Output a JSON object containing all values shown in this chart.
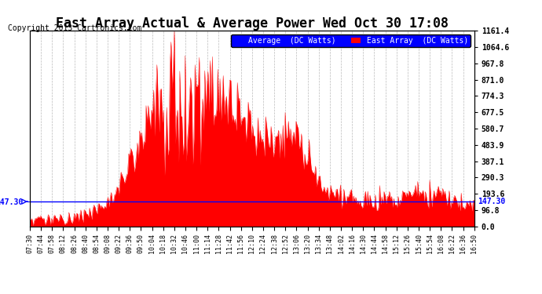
{
  "title": "East Array Actual & Average Power Wed Oct 30 17:08",
  "copyright": "Copyright 2013 Cartronics.com",
  "legend_labels": [
    "Average  (DC Watts)",
    "East Array  (DC Watts)"
  ],
  "legend_colors": [
    "#0000ff",
    "#ff0000"
  ],
  "yticks_right": [
    0.0,
    96.8,
    193.6,
    290.3,
    387.1,
    483.9,
    580.7,
    677.5,
    774.3,
    871.0,
    967.8,
    1064.6,
    1161.4
  ],
  "hline_value": 147.3,
  "hline_label": "147.30",
  "ymax": 1161.4,
  "ymin": 0.0,
  "bg_color": "#ffffff",
  "grid_color": "#bbbbbb",
  "fill_color": "#ff0000",
  "avg_color": "#0000ff",
  "title_fontsize": 12,
  "copyright_fontsize": 7,
  "xtick_fontsize": 6,
  "ytick_fontsize": 7,
  "time_labels": [
    "07:30",
    "07:44",
    "07:58",
    "08:12",
    "08:26",
    "08:40",
    "08:54",
    "09:08",
    "09:22",
    "09:36",
    "09:50",
    "10:04",
    "10:18",
    "10:32",
    "10:46",
    "11:00",
    "11:14",
    "11:28",
    "11:42",
    "11:56",
    "12:10",
    "12:24",
    "12:38",
    "12:52",
    "13:06",
    "13:20",
    "13:34",
    "13:48",
    "14:02",
    "14:16",
    "14:30",
    "14:44",
    "14:58",
    "15:12",
    "15:26",
    "15:40",
    "15:54",
    "16:08",
    "16:22",
    "16:36",
    "16:50"
  ]
}
